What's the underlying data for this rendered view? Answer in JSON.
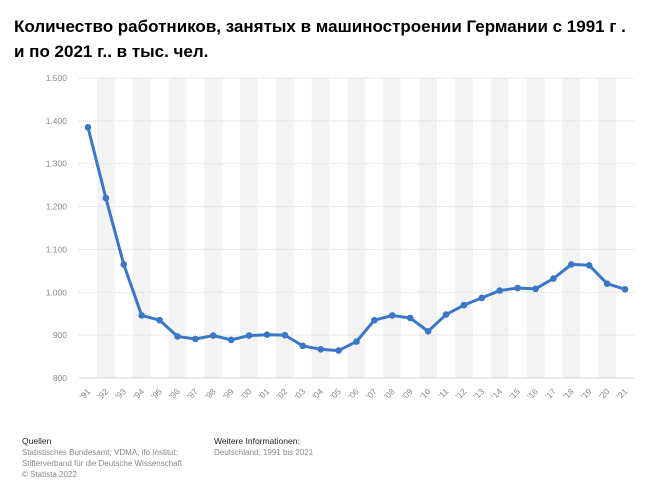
{
  "chart_data": {
    "type": "line",
    "title": "Количество работников, занятых в машиностроении Германии с 1991 г . и по 2021 г.. в тыс. чел.",
    "categories": [
      "'91",
      "'92",
      "'93",
      "'94",
      "'95",
      "'96",
      "'97",
      "'98",
      "'99",
      "'00",
      "'01",
      "'02",
      "'03",
      "'04",
      "'05",
      "'06",
      "'07",
      "'08",
      "'09",
      "'10",
      "'11",
      "'12",
      "'13",
      "'14",
      "'15",
      "'16",
      "'17",
      "'18",
      "'19",
      "'20",
      "'21"
    ],
    "values": [
      1385,
      1220,
      1065,
      946,
      935,
      897,
      891,
      899,
      889,
      899,
      901,
      900,
      875,
      867,
      864,
      885,
      935,
      946,
      940,
      909,
      948,
      970,
      987,
      1004,
      1010,
      1008,
      1032,
      1065,
      1063,
      1020,
      1007
    ],
    "y_ticks": [
      "1.500",
      "1.400",
      "1.300",
      "1.200",
      "1.100",
      "1.000",
      "900",
      "800"
    ],
    "y_tick_values": [
      1500,
      1400,
      1300,
      1200,
      1100,
      1000,
      900,
      800
    ],
    "ylim": [
      800,
      1500
    ],
    "line_color": "#3b77c7",
    "grid": true,
    "xlabel": "",
    "ylabel": ""
  },
  "footer": {
    "sources_heading": "Quellen",
    "sources_lines": [
      "Statistisches Bundesamt; VDMA; ifo Institut;",
      "Stifterverband für die Deutsche Wissenschaft",
      "© Statista 2022"
    ],
    "info_heading": "Weitere Informationen:",
    "info_lines": [
      "Deutschland; 1991 bis 2021"
    ]
  }
}
